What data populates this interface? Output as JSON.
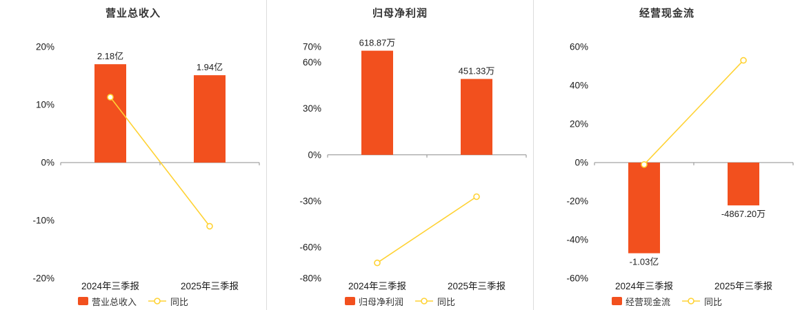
{
  "page": {
    "background": "#ffffff",
    "divider_color": "#dcdcdc"
  },
  "chart_data": [
    {
      "type": "bar+line",
      "title": "营业总收入",
      "categories": [
        "2024年三季报",
        "2025年三季报"
      ],
      "ylim": [
        -20,
        20
      ],
      "yticks": [
        20,
        10,
        0,
        -10,
        -20
      ],
      "ytick_labels": [
        "20%",
        "10%",
        "0%",
        "-10%",
        "-20%"
      ],
      "bar_series": {
        "name": "营业总收入",
        "value_labels": [
          "2.18亿",
          "1.94亿"
        ],
        "axis_values": [
          17,
          15.1
        ],
        "color": "#f2501e"
      },
      "line_series": {
        "name": "同比",
        "values_pct": [
          11.3,
          -11.0
        ],
        "color": "#ffd233"
      },
      "axis_color": "#8c8c8c",
      "grid": false,
      "legend_position": "bottom"
    },
    {
      "type": "bar+line",
      "title": "归母净利润",
      "categories": [
        "2024年三季报",
        "2025年三季报"
      ],
      "ylim": [
        -80,
        70
      ],
      "yticks": [
        70,
        60,
        30,
        0,
        -30,
        -60,
        -80
      ],
      "ytick_labels": [
        "70%",
        "60%",
        "30%",
        "0%",
        "-30%",
        "-60%",
        "-80%"
      ],
      "bar_series": {
        "name": "归母净利润",
        "value_labels": [
          "618.87万",
          "451.33万"
        ],
        "axis_values": [
          67.5,
          49.2
        ],
        "color": "#f2501e"
      },
      "line_series": {
        "name": "同比",
        "values_pct": [
          -70.0,
          -27.1
        ],
        "color": "#ffd233"
      },
      "axis_color": "#8c8c8c",
      "grid": false,
      "legend_position": "bottom"
    },
    {
      "type": "bar+line",
      "title": "经营现金流",
      "categories": [
        "2024年三季报",
        "2025年三季报"
      ],
      "ylim": [
        -60,
        60
      ],
      "yticks": [
        60,
        40,
        20,
        0,
        -20,
        -40,
        -60
      ],
      "ytick_labels": [
        "60%",
        "40%",
        "20%",
        "0%",
        "-20%",
        "-40%",
        "-60%"
      ],
      "bar_series": {
        "name": "经营现金流",
        "value_labels": [
          "-1.03亿",
          "-4867.20万"
        ],
        "axis_values": [
          -47,
          -22.2
        ],
        "color": "#f2501e"
      },
      "line_series": {
        "name": "同比",
        "values_pct": [
          -1.0,
          53.0
        ],
        "color": "#ffd233"
      },
      "axis_color": "#8c8c8c",
      "grid": false,
      "legend_position": "bottom"
    }
  ]
}
